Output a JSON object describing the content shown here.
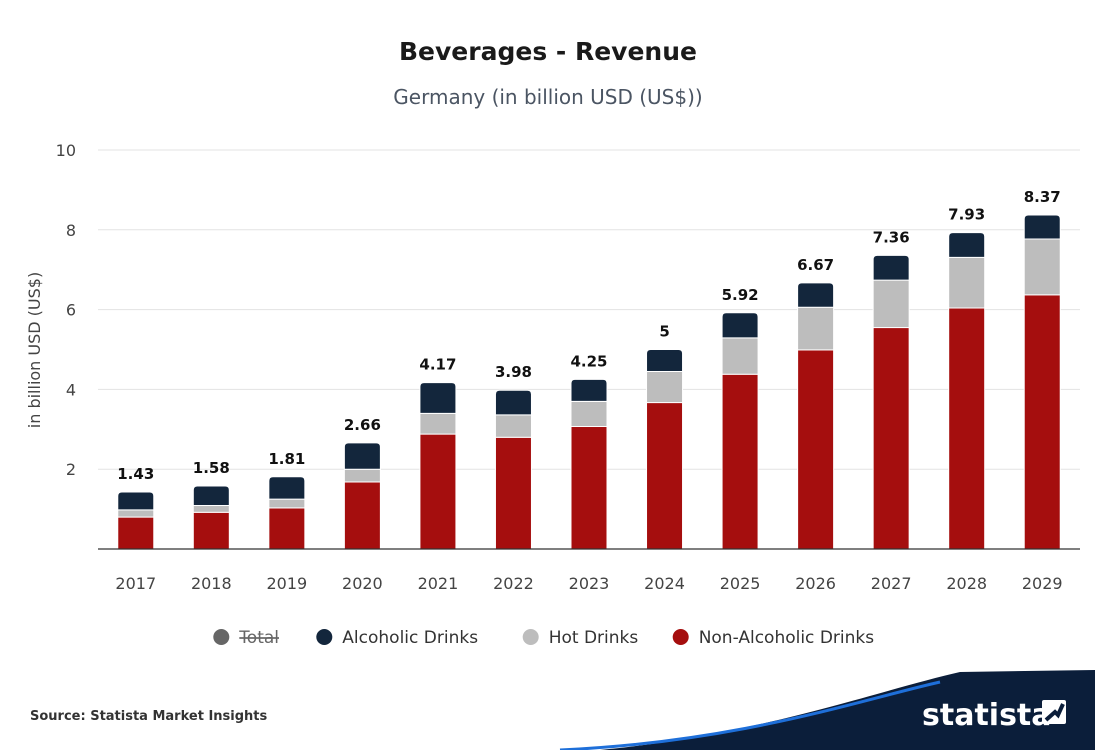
{
  "chart_data": {
    "type": "bar",
    "stacked": true,
    "title": "Beverages - Revenue",
    "subtitle": "Germany (in billion USD (US$))",
    "xlabel": "",
    "ylabel": "in billion USD (US$)",
    "ylim": [
      0,
      10
    ],
    "yticks": [
      "2",
      "4",
      "6",
      "8",
      "10"
    ],
    "grid": true,
    "legend_position": "bottom",
    "categories": [
      "2017",
      "2018",
      "2019",
      "2020",
      "2021",
      "2022",
      "2023",
      "2024",
      "2025",
      "2026",
      "2027",
      "2028",
      "2029"
    ],
    "totals": [
      "1.43",
      "1.58",
      "1.81",
      "2.66",
      "4.17",
      "3.98",
      "4.25",
      "5",
      "5.92",
      "6.67",
      "7.36",
      "7.93",
      "8.37"
    ],
    "series": [
      {
        "name": "Non-Alcoholic Drinks",
        "color": "#a50e0e",
        "values": [
          0.8,
          0.92,
          1.03,
          1.68,
          2.88,
          2.8,
          3.07,
          3.67,
          4.38,
          4.99,
          5.55,
          6.04,
          6.37
        ]
      },
      {
        "name": "Hot Drinks",
        "color": "#bdbdbd",
        "values": [
          0.18,
          0.17,
          0.22,
          0.32,
          0.52,
          0.56,
          0.63,
          0.78,
          0.91,
          1.07,
          1.19,
          1.27,
          1.4
        ]
      },
      {
        "name": "Alcoholic Drinks",
        "color": "#13263c",
        "values": [
          0.45,
          0.49,
          0.56,
          0.66,
          0.77,
          0.62,
          0.55,
          0.55,
          0.63,
          0.61,
          0.62,
          0.62,
          0.6
        ]
      }
    ],
    "legend": [
      {
        "name": "Total",
        "color": "#666666",
        "disabled": true
      },
      {
        "name": "Alcoholic Drinks",
        "color": "#13263c",
        "disabled": false
      },
      {
        "name": "Hot Drinks",
        "color": "#bdbdbd",
        "disabled": false
      },
      {
        "name": "Non-Alcoholic Drinks",
        "color": "#a50e0e",
        "disabled": false
      }
    ]
  },
  "footer": {
    "source": "Source: Statista Market Insights",
    "brand": "statista",
    "brand_color": "#0b1e3a"
  }
}
